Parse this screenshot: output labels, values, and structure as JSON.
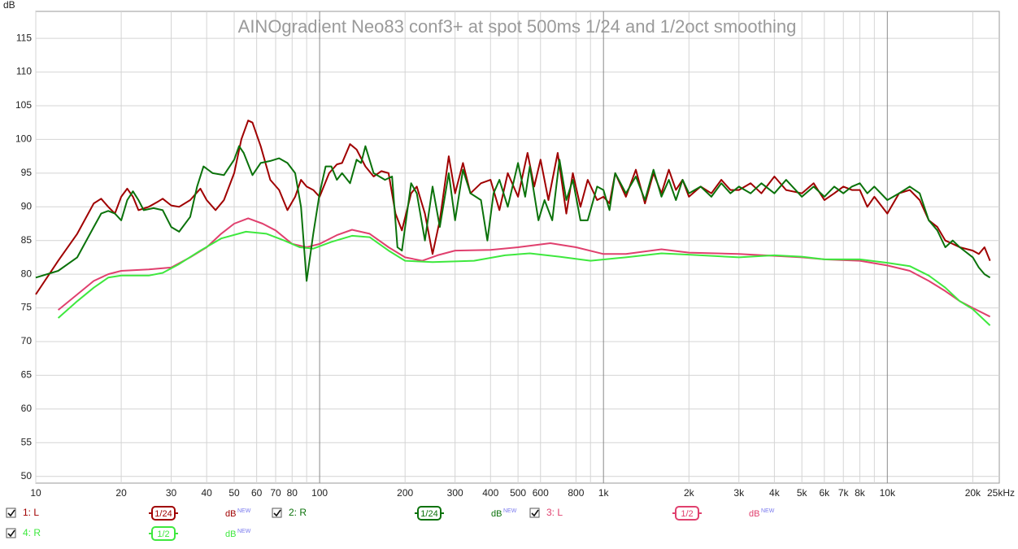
{
  "chart_data": {
    "type": "line",
    "title": "AINOgradient Neo83 conf3+ at spot 500ms 1/24 and 1/2oct smoothing",
    "y_label": "dB",
    "log_x": true,
    "grid": true,
    "xlim": [
      10,
      24800
    ],
    "ylim": [
      49,
      119
    ],
    "yticks": [
      50,
      55,
      60,
      65,
      70,
      75,
      80,
      85,
      90,
      95,
      100,
      105,
      110,
      115
    ],
    "xticks": [
      10,
      20,
      30,
      40,
      50,
      60,
      70,
      80,
      100,
      200,
      300,
      400,
      500,
      600,
      800,
      {
        "value": 1000,
        "label": "1k"
      },
      {
        "value": 2000,
        "label": "2k"
      },
      {
        "value": 3000,
        "label": "3k"
      },
      {
        "value": 4000,
        "label": "4k"
      },
      {
        "value": 5000,
        "label": "5k"
      },
      {
        "value": 6000,
        "label": "6k"
      },
      {
        "value": 7000,
        "label": "7k"
      },
      {
        "value": 8000,
        "label": "8k"
      },
      {
        "value": 10000,
        "label": "10k"
      },
      {
        "value": 20000,
        "label": "20k"
      },
      {
        "value": 25000,
        "label": "25kHz"
      }
    ],
    "x_unlabeled_grid": [
      90,
      900,
      9000
    ],
    "series": [
      {
        "name": "1: L",
        "smoothing": "1/24",
        "unit": "dB",
        "unit_tag": "NEW",
        "color": "#a00000",
        "x": [
          10,
          12,
          14,
          16,
          17,
          18,
          19,
          20,
          21,
          22,
          23,
          25,
          27,
          28,
          30,
          32,
          35,
          38,
          40,
          43,
          46,
          50,
          53,
          56,
          58,
          62,
          67,
          72,
          77,
          82,
          86,
          90,
          95,
          100,
          108,
          115,
          120,
          128,
          135,
          145,
          155,
          165,
          175,
          185,
          195,
          210,
          220,
          235,
          250,
          265,
          285,
          300,
          320,
          340,
          370,
          400,
          430,
          460,
          500,
          540,
          570,
          600,
          640,
          690,
          740,
          780,
          830,
          880,
          950,
          1000,
          1050,
          1100,
          1200,
          1300,
          1400,
          1500,
          1600,
          1700,
          1800,
          1900,
          2000,
          2200,
          2400,
          2600,
          2800,
          3000,
          3300,
          3600,
          4000,
          4400,
          5000,
          5500,
          6000,
          6500,
          7000,
          7500,
          8000,
          8500,
          9000,
          10000,
          11000,
          12000,
          13000,
          14000,
          15000,
          16000,
          17000,
          18000,
          20000,
          21000,
          22000,
          23000
        ],
        "values": [
          77,
          82,
          86,
          90.5,
          91.2,
          90,
          89,
          91.5,
          92.7,
          91.5,
          89.5,
          90,
          90.8,
          91.2,
          90.2,
          90,
          91,
          92.7,
          91,
          89.5,
          91,
          95,
          100,
          102.8,
          102.5,
          99,
          94,
          92.5,
          89.5,
          91.5,
          94,
          93,
          92.5,
          91.5,
          95,
          96.3,
          96.5,
          99.3,
          98.5,
          96,
          94.5,
          95.3,
          95,
          89,
          86.5,
          92,
          93,
          89,
          83,
          88,
          97.5,
          92,
          96.5,
          92,
          93.5,
          94,
          89.5,
          95,
          91.5,
          98,
          93,
          97,
          91,
          98,
          89,
          95,
          90,
          94,
          91,
          91.5,
          90.5,
          95,
          91.5,
          95.5,
          90.5,
          95,
          92,
          95.5,
          92.5,
          94,
          91.5,
          93,
          92,
          94,
          92.5,
          92.5,
          93.5,
          92,
          94.5,
          92.5,
          92,
          93.5,
          91,
          92,
          93,
          92.5,
          92.5,
          90,
          91.5,
          89,
          92,
          92.5,
          91,
          88,
          87,
          85,
          84.5,
          84,
          83.5,
          83,
          84,
          82
        ]
      },
      {
        "name": "2: R",
        "smoothing": "1/24",
        "unit": "dB",
        "unit_tag": "NEW",
        "color": "#0b720b",
        "x": [
          10,
          12,
          14,
          16,
          17,
          18,
          19,
          20,
          21,
          22,
          23,
          24,
          26,
          28,
          30,
          32,
          35,
          37,
          39,
          42,
          46,
          50,
          52,
          54,
          58,
          62,
          67,
          72,
          77,
          82,
          86,
          90,
          95,
          100,
          105,
          110,
          115,
          120,
          128,
          135,
          140,
          145,
          155,
          170,
          180,
          188,
          195,
          210,
          220,
          235,
          250,
          265,
          285,
          300,
          320,
          340,
          370,
          390,
          410,
          430,
          460,
          500,
          530,
          550,
          590,
          620,
          660,
          700,
          740,
          780,
          830,
          880,
          950,
          1000,
          1050,
          1100,
          1200,
          1300,
          1400,
          1500,
          1600,
          1700,
          1800,
          1900,
          2000,
          2200,
          2400,
          2600,
          2800,
          3000,
          3300,
          3600,
          4000,
          4400,
          5000,
          5500,
          6000,
          6500,
          7000,
          7500,
          8000,
          8500,
          9000,
          10000,
          11000,
          12000,
          13000,
          14000,
          15000,
          16000,
          17000,
          18000,
          20000,
          21000,
          22000,
          23000
        ],
        "values": [
          79.5,
          80.5,
          82.5,
          87,
          89,
          89.4,
          89,
          88,
          91,
          92.3,
          91,
          89.5,
          89.8,
          89.5,
          87,
          86.3,
          88.5,
          93,
          96,
          95,
          94.7,
          97,
          99,
          98,
          94.7,
          96.5,
          96.8,
          97.2,
          96.5,
          95,
          90,
          79,
          86,
          92,
          96,
          96,
          94,
          95,
          93.5,
          97,
          96.5,
          99,
          95,
          94,
          94.5,
          84,
          83.5,
          93.5,
          92,
          85,
          93,
          87,
          95,
          88,
          95.5,
          92,
          91,
          85,
          92,
          94,
          90,
          96.5,
          91.5,
          96,
          88,
          91,
          88,
          97,
          91,
          94,
          88,
          88,
          93,
          92.5,
          89.5,
          95,
          92,
          94.5,
          91,
          95.5,
          91.5,
          94,
          91,
          94,
          92,
          93,
          91.5,
          93.5,
          92,
          93,
          92,
          93.5,
          92,
          94,
          91.5,
          93,
          91.5,
          93,
          92,
          93,
          93.5,
          92,
          93,
          91,
          92,
          93,
          92,
          88,
          86.5,
          84,
          85,
          84,
          82.5,
          81,
          80,
          79.5
        ]
      },
      {
        "name": "3: L",
        "smoothing": "1/2",
        "unit": "dB",
        "unit_tag": "NEW",
        "color": "#e0406e",
        "x": [
          12,
          14,
          16,
          18,
          20,
          25,
          30,
          35,
          40,
          45,
          50,
          56,
          63,
          70,
          80,
          90,
          100,
          115,
          130,
          150,
          175,
          200,
          230,
          260,
          300,
          400,
          500,
          650,
          800,
          1000,
          1200,
          1600,
          2000,
          3000,
          5000,
          6000,
          8000,
          10000,
          12000,
          14000,
          16000,
          18000,
          20000,
          23000
        ],
        "values": [
          74.7,
          77,
          79,
          80,
          80.5,
          80.7,
          81,
          82.5,
          84,
          86,
          87.5,
          88.3,
          87.5,
          86.5,
          84.5,
          84,
          84.5,
          85.8,
          86.6,
          86,
          84,
          82.5,
          82,
          82.8,
          83.5,
          83.6,
          84,
          84.6,
          84,
          83,
          83,
          83.7,
          83.2,
          83,
          82.5,
          82.2,
          82,
          81.3,
          80.5,
          79,
          77.5,
          76,
          75,
          73.7
        ]
      },
      {
        "name": "4: R",
        "smoothing": "1/2",
        "unit": "dB",
        "unit_tag": "NEW",
        "color": "#3ee83e",
        "x": [
          12,
          14,
          16,
          18,
          20,
          25,
          28,
          32,
          38,
          45,
          55,
          65,
          75,
          85,
          95,
          110,
          130,
          150,
          175,
          200,
          250,
          350,
          450,
          550,
          700,
          900,
          1200,
          1600,
          2000,
          3000,
          4000,
          5000,
          6000,
          8000,
          10000,
          12000,
          14000,
          16000,
          18000,
          20000,
          23000
        ],
        "values": [
          73.5,
          76,
          78,
          79.5,
          79.8,
          79.8,
          80.2,
          81.5,
          83.5,
          85.3,
          86.3,
          86,
          85,
          84,
          83.8,
          84.8,
          85.7,
          85.5,
          83.5,
          82,
          81.8,
          82,
          82.8,
          83.1,
          82.6,
          82,
          82.5,
          83.1,
          82.9,
          82.5,
          82.8,
          82.6,
          82.2,
          82.2,
          81.7,
          81.2,
          79.8,
          78,
          76,
          74.8,
          72.4
        ]
      }
    ]
  }
}
